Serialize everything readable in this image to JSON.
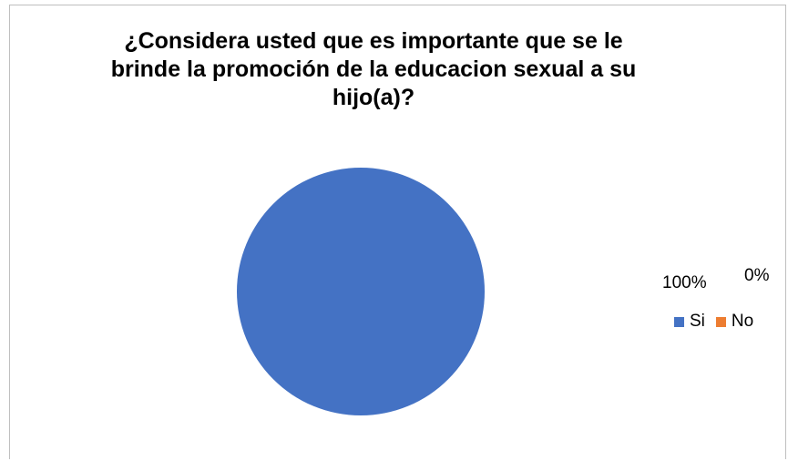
{
  "chart_data": {
    "type": "pie",
    "title_lines": [
      "¿Considera usted que es importante que se le",
      "brinde la promoción de la educacion sexual a su",
      "hijo(a)?"
    ],
    "categories": [
      "Si",
      "No"
    ],
    "values": [
      100,
      0
    ],
    "labels": [
      "100%",
      "0%"
    ],
    "colors": [
      "#4472c4",
      "#ed7d31"
    ],
    "legend_position": "right"
  }
}
